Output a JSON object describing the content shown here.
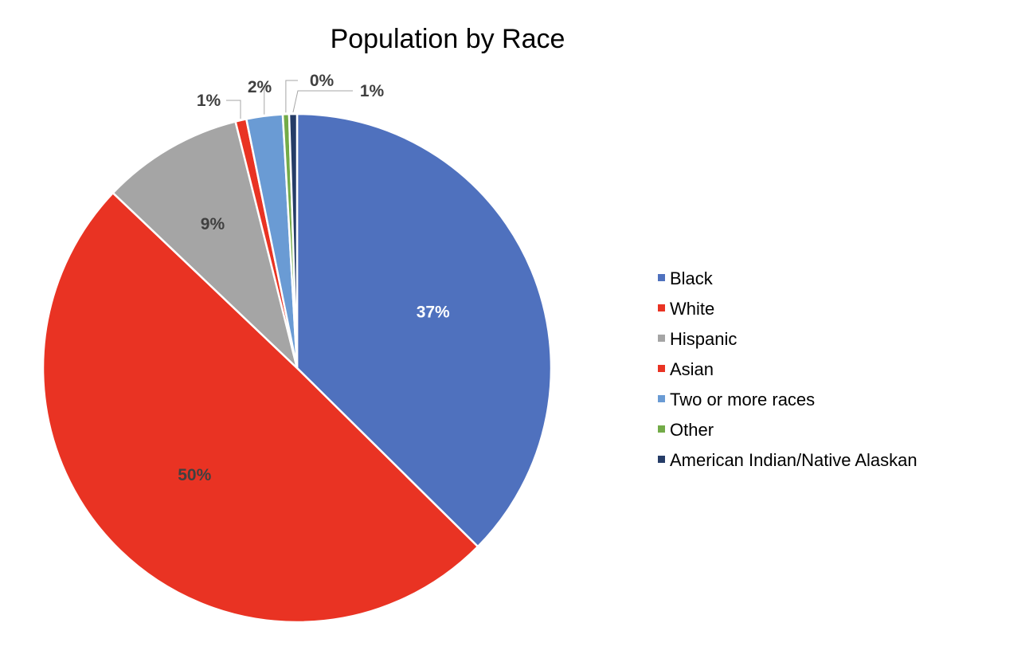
{
  "chart_data": {
    "type": "pie",
    "title": "Population by Race",
    "series": [
      {
        "slices": [
          {
            "label": "Black",
            "value": 37.4,
            "display": "37%",
            "color": "#4f71be"
          },
          {
            "label": "White",
            "value": 49.7,
            "display": "50%",
            "color": "#e93323"
          },
          {
            "label": "Hispanic",
            "value": 9.0,
            "display": "9%",
            "color": "#a5a5a5"
          },
          {
            "label": "Asian",
            "value": 0.7,
            "display": "1%",
            "color": "#e93323"
          },
          {
            "label": "Two or more races",
            "value": 2.3,
            "display": "2%",
            "color": "#6a9bd4"
          },
          {
            "label": "Other",
            "value": 0.4,
            "display": "0%",
            "color": "#73ab48"
          },
          {
            "label": "American Indian/Native Alaskan",
            "value": 0.5,
            "display": "1%",
            "color": "#253c67"
          }
        ]
      }
    ],
    "legend_position": "right"
  }
}
